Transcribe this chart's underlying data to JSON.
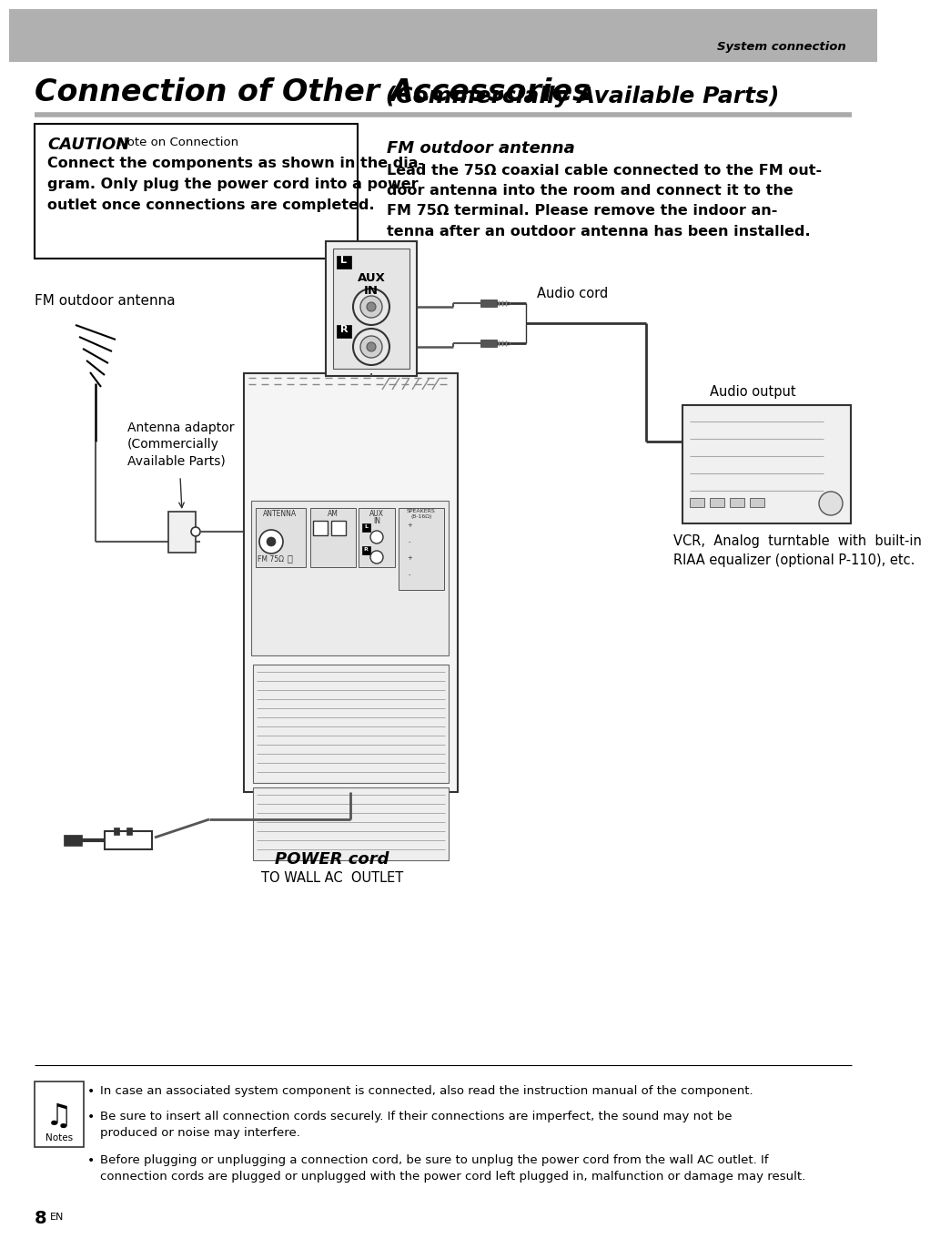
{
  "page_bg": "#ffffff",
  "header_bg": "#b0b0b0",
  "header_text": "System connection",
  "title_bold": "Connection of Other Accessories",
  "title_normal": "(Commercially Available Parts)",
  "separator_color": "#999999",
  "caution_title_bold": "CAUTION",
  "caution_title_sub": "Note on Connection",
  "caution_body": "Connect the components as shown in the dia-\ngram. Only plug the power cord into a power\noutlet once connections are completed.",
  "fm_title": "FM outdoor antenna",
  "fm_body": "Lead the 75Ω coaxial cable connected to the FM out-\ndoor antenna into the room and connect it to the\nFM 75Ω terminal. Please remove the indoor an-\ntenna after an outdoor antenna has been installed.",
  "diag_antenna_label": "FM outdoor antenna",
  "diag_adaptor_label": "Antenna adaptor\n(Commercially\nAvailable Parts)",
  "diag_audio_cord": "Audio cord",
  "diag_audio_output": "Audio output",
  "diag_vcr": "VCR,  Analog  turntable  with  built-in\nRIAA equalizer (optional P-110), etc.",
  "diag_power_bold": "POWER cord",
  "diag_outlet": "TO WALL AC  OUTLET",
  "note1": "In case an associated system component is connected, also read the instruction manual of the component.",
  "note2": "Be sure to insert all connection cords securely. If their connections are imperfect, the sound may not be\nproduced or noise may interfere.",
  "note3": "Before plugging or unplugging a connection cord, be sure to unplug the power cord from the wall AC outlet. If\nconnection cords are plugged or unplugged with the power cord left plugged in, malfunction or damage may result.",
  "page_num": "8",
  "page_sup": "EN"
}
